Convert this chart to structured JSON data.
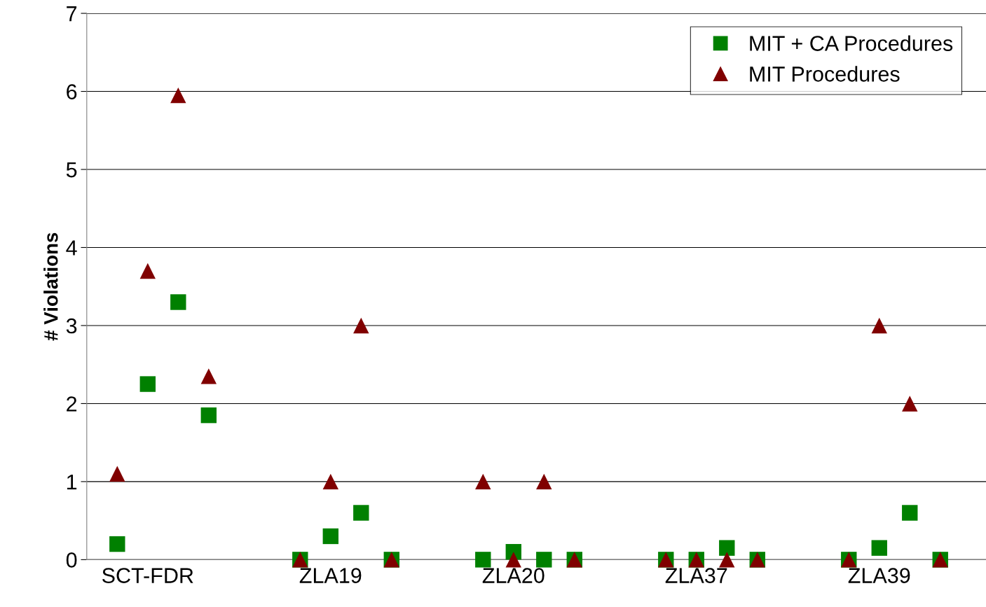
{
  "chart_data": {
    "type": "scatter",
    "ylabel": "# Violations",
    "categories": [
      null,
      "SCT-FDR",
      null,
      null,
      null,
      null,
      null,
      "ZLA19",
      null,
      null,
      null,
      null,
      null,
      "ZLA20",
      null,
      null,
      null,
      null,
      null,
      "ZLA37",
      null,
      null,
      null,
      null,
      null,
      "ZLA39",
      null,
      null
    ],
    "series": [
      {
        "name": "MIT + CA Procedures",
        "color": "#008000",
        "marker": "square",
        "values": [
          0.2,
          2.25,
          3.3,
          1.85,
          null,
          null,
          0,
          0.3,
          0.6,
          0,
          null,
          null,
          0,
          0.1,
          0,
          0,
          null,
          null,
          0,
          0,
          0.15,
          0,
          null,
          null,
          0,
          0.15,
          0.6,
          0
        ]
      },
      {
        "name": "MIT Procedures",
        "color": "#800000",
        "marker": "triangle",
        "values": [
          1.1,
          3.7,
          5.95,
          2.35,
          null,
          null,
          0,
          1,
          3,
          0,
          null,
          null,
          1,
          0,
          1,
          0,
          null,
          null,
          0,
          0,
          0,
          0,
          null,
          null,
          0,
          3,
          2,
          0
        ]
      }
    ],
    "ylim": [
      0,
      7
    ],
    "yticks": [
      0,
      1,
      2,
      3,
      4,
      5,
      6,
      7
    ],
    "grid": "y",
    "legend": "top right"
  }
}
